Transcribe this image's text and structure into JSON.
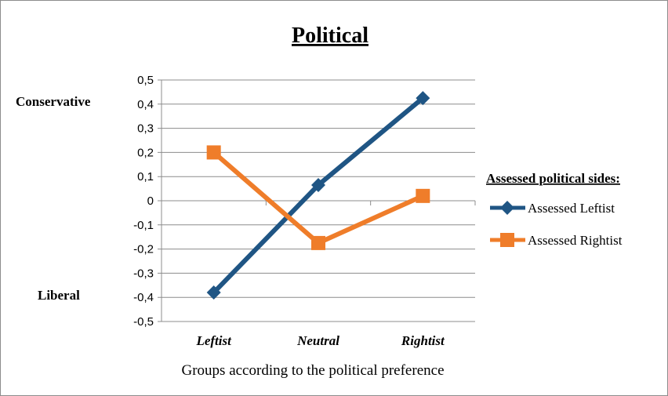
{
  "chart_data": {
    "type": "line",
    "title": "Political",
    "xlabel": "Groups according to the political preference",
    "ylabel": "",
    "side_labels": {
      "top": "Conservative",
      "bottom": "Liberal"
    },
    "categories": [
      "Leftist",
      "Neutral",
      "Rightist"
    ],
    "ylim": [
      -0.5,
      0.5
    ],
    "yticks": [
      "0,5",
      "0,4",
      "0,3",
      "0,2",
      "0,1",
      "0",
      "-0,1",
      "-0,2",
      "-0,3",
      "-0,4",
      "-0,5"
    ],
    "grid": true,
    "legend": {
      "title": "Assessed political sides:",
      "placement": "right"
    },
    "series": [
      {
        "name": "Assessed Leftist",
        "values": [
          -0.38,
          0.065,
          0.425
        ],
        "color": "#1f5584",
        "marker": "diamond"
      },
      {
        "name": "Assessed Rightist",
        "values": [
          0.2,
          -0.175,
          0.02
        ],
        "color": "#ef7d2a",
        "marker": "square"
      }
    ]
  }
}
